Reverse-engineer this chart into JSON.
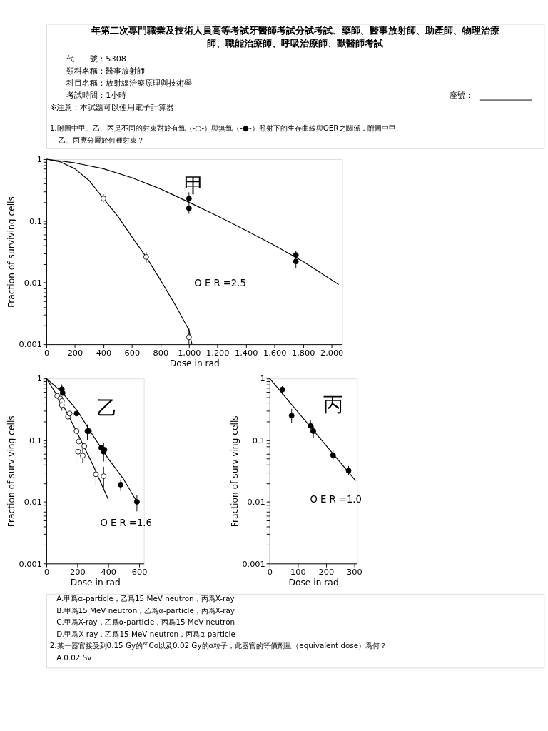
{
  "chart_data": [
    {
      "type": "scatter",
      "title": "甲",
      "xlabel": "Dose in rad",
      "ylabel": "Fraction of surviving cells",
      "log": "y",
      "grid": false,
      "xlim": [
        0,
        2075
      ],
      "ylim": [
        0.001,
        1
      ],
      "xticks": [
        0,
        200,
        400,
        600,
        800,
        {
          "value": 1000,
          "label": "1,000"
        },
        {
          "value": 1200,
          "label": "1,200"
        },
        {
          "value": 1400,
          "label": "1,400"
        },
        {
          "value": 1600,
          "label": "1,600"
        },
        {
          "value": 1800,
          "label": "1,800"
        },
        {
          "value": 2000,
          "label": "2,000"
        }
      ],
      "yticks": [
        0.001,
        {
          "value": 0.002,
          "label": null
        },
        {
          "value": 0.003,
          "label": null
        },
        {
          "value": 0.004,
          "label": null
        },
        {
          "value": 0.005,
          "label": null
        },
        {
          "value": 0.006,
          "label": null
        },
        {
          "value": 0.007,
          "label": null
        },
        {
          "value": 0.008,
          "label": null
        },
        {
          "value": 0.009,
          "label": null
        },
        0.01,
        {
          "value": 0.02,
          "label": null
        },
        {
          "value": 0.03,
          "label": null
        },
        {
          "value": 0.04,
          "label": null
        },
        {
          "value": 0.05,
          "label": null
        },
        {
          "value": 0.06,
          "label": null
        },
        {
          "value": 0.07,
          "label": null
        },
        {
          "value": 0.08,
          "label": null
        },
        {
          "value": 0.09,
          "label": null
        },
        0.1,
        {
          "value": 0.2,
          "label": null
        },
        {
          "value": 0.3,
          "label": null
        },
        {
          "value": 0.4,
          "label": null
        },
        {
          "value": 0.5,
          "label": null
        },
        {
          "value": 0.6,
          "label": null
        },
        {
          "value": 0.7,
          "label": null
        },
        {
          "value": 0.8,
          "label": null
        },
        {
          "value": 0.9,
          "label": null
        },
        1
      ],
      "series": [
        {
          "type": "line",
          "color": "#000000",
          "marker": "none",
          "x": [
            0,
            100,
            200,
            300,
            400,
            500,
            600,
            700,
            800,
            900,
            1000,
            1020
          ],
          "values": [
            1,
            0.9,
            0.7,
            0.45,
            0.23,
            0.12,
            0.055,
            0.026,
            0.011,
            0.0045,
            0.0017,
            0.001
          ]
        },
        {
          "type": "line",
          "color": "#000000",
          "marker": "none",
          "x": [
            0,
            200,
            400,
            600,
            800,
            1000,
            1200,
            1400,
            1600,
            1800,
            2050
          ],
          "values": [
            1,
            0.87,
            0.7,
            0.5,
            0.33,
            0.2,
            0.12,
            0.07,
            0.04,
            0.022,
            0.0093
          ]
        },
        {
          "color": "#ffffff",
          "marker": "circle",
          "x": [
            400,
            700,
            1000
          ],
          "values": [
            0.23,
            0.026,
            0.0013
          ],
          "errors": [
            [
              0.2,
              0.27
            ],
            [
              0.021,
              0.031
            ],
            [
              0.001,
              0.0018
            ]
          ]
        },
        {
          "color": "#000000",
          "marker": "circle",
          "x": [
            1000,
            1000,
            1750,
            1750
          ],
          "values": [
            0.23,
            0.16,
            0.028,
            0.022
          ],
          "errors": [
            [
              0.13,
              0.29
            ],
            null,
            [
              0.017,
              0.033
            ],
            null
          ]
        }
      ],
      "annotations": [
        "O E R =2.5",
        "年第二次專門職業及技術人員高等考試牙醫師考試分試考試、藥師、醫事放射師、助產師、物理治療",
        "師、職能治療師、呼吸治療師、獸醫師考試",
        "代　　號：5308",
        "類科名稱：醫事放射師",
        "科目名稱：放射線治療原理與技術學",
        "考試時間：1小時",
        "座號：",
        "※注意：本試題可以使用電子計算器",
        "1.附圖中甲、乙、丙是不同的射束對於有氧（-○-）與無氧（-●-）照射下的生存曲線與OER之關係，附圖中甲、",
        "乙、丙應分屬於何種射束？"
      ]
    },
    {
      "type": "scatter",
      "title": "乙",
      "xlabel": "Dose in rad",
      "ylabel": "Fraction of surviving cells",
      "log": "y",
      "grid": false,
      "xlim": [
        0,
        630
      ],
      "ylim": [
        0.001,
        1
      ],
      "xticks": [
        0,
        200,
        400,
        600
      ],
      "yticks": [
        0.001,
        {
          "value": 0.002,
          "label": null
        },
        {
          "value": 0.003,
          "label": null
        },
        {
          "value": 0.004,
          "label": null
        },
        {
          "value": 0.005,
          "label": null
        },
        {
          "value": 0.006,
          "label": null
        },
        {
          "value": 0.007,
          "label": null
        },
        {
          "value": 0.008,
          "label": null
        },
        {
          "value": 0.009,
          "label": null
        },
        0.01,
        {
          "value": 0.02,
          "label": null
        },
        {
          "value": 0.03,
          "label": null
        },
        {
          "value": 0.04,
          "label": null
        },
        {
          "value": 0.05,
          "label": null
        },
        {
          "value": 0.06,
          "label": null
        },
        {
          "value": 0.07,
          "label": null
        },
        {
          "value": 0.08,
          "label": null
        },
        {
          "value": 0.09,
          "label": null
        },
        0.1,
        {
          "value": 0.2,
          "label": null
        },
        {
          "value": 0.3,
          "label": null
        },
        {
          "value": 0.4,
          "label": null
        },
        {
          "value": 0.5,
          "label": null
        },
        {
          "value": 0.6,
          "label": null
        },
        {
          "value": 0.7,
          "label": null
        },
        {
          "value": 0.8,
          "label": null
        },
        {
          "value": 0.9,
          "label": null
        },
        1
      ],
      "series": [
        {
          "type": "line",
          "color": "#000000",
          "marker": "none",
          "x": [
            0,
            100,
            200,
            300,
            400,
            500,
            585
          ],
          "values": [
            1,
            0.6,
            0.3,
            0.12,
            0.05,
            0.023,
            0.01
          ]
        },
        {
          "type": "line",
          "color": "#000000",
          "marker": "none",
          "x": [
            0,
            100,
            200,
            300,
            400
          ],
          "values": [
            1,
            0.4,
            0.13,
            0.04,
            0.011
          ]
        },
        {
          "color": "#ffffff",
          "marker": "circle",
          "x": [
            70,
            90,
            100,
            100,
            140,
            150,
            195,
            210,
            205,
            235,
            245,
            320,
            370
          ],
          "values": [
            0.52,
            0.47,
            0.43,
            0.37,
            0.24,
            0.27,
            0.14,
            0.095,
            0.065,
            0.056,
            0.08,
            0.028,
            0.026
          ],
          "errors": [
            null,
            null,
            null,
            [
              0.3,
              0.45
            ],
            null,
            null,
            null,
            null,
            [
              0.042,
              0.1
            ],
            [
              0.042,
              0.075
            ],
            null,
            [
              0.018,
              0.04
            ],
            [
              0.017,
              0.037
            ]
          ]
        },
        {
          "color": "#000000",
          "marker": "circle",
          "x": [
            100,
            105,
            195,
            265,
            275,
            355,
            370,
            375,
            480,
            585
          ],
          "values": [
            0.67,
            0.58,
            0.27,
            0.14,
            0.14,
            0.075,
            0.065,
            0.07,
            0.019,
            0.01
          ],
          "errors": [
            [
              0.55,
              0.8
            ],
            null,
            null,
            [
              0.1,
              0.18
            ],
            null,
            null,
            [
              0.045,
              0.09
            ],
            null,
            [
              0.015,
              0.023
            ],
            [
              0.007,
              0.013
            ]
          ]
        }
      ],
      "annotations": [
        "O E R =1.6"
      ]
    },
    {
      "type": "scatter",
      "title": "丙",
      "xlabel": "Dose in rad",
      "ylabel": "Fraction of surviving cells",
      "log": "y",
      "grid": false,
      "xlim": [
        0,
        310
      ],
      "ylim": [
        0.001,
        1
      ],
      "xticks": [
        0,
        100,
        200,
        300
      ],
      "yticks": [
        0.001,
        {
          "value": 0.002,
          "label": null
        },
        {
          "value": 0.003,
          "label": null
        },
        {
          "value": 0.004,
          "label": null
        },
        {
          "value": 0.005,
          "label": null
        },
        {
          "value": 0.006,
          "label": null
        },
        {
          "value": 0.007,
          "label": null
        },
        {
          "value": 0.008,
          "label": null
        },
        {
          "value": 0.009,
          "label": null
        },
        0.01,
        {
          "value": 0.02,
          "label": null
        },
        {
          "value": 0.03,
          "label": null
        },
        {
          "value": 0.04,
          "label": null
        },
        {
          "value": 0.05,
          "label": null
        },
        {
          "value": 0.06,
          "label": null
        },
        {
          "value": 0.07,
          "label": null
        },
        {
          "value": 0.08,
          "label": null
        },
        {
          "value": 0.09,
          "label": null
        },
        0.1,
        {
          "value": 0.2,
          "label": null
        },
        {
          "value": 0.3,
          "label": null
        },
        {
          "value": 0.4,
          "label": null
        },
        {
          "value": 0.5,
          "label": null
        },
        {
          "value": 0.6,
          "label": null
        },
        {
          "value": 0.7,
          "label": null
        },
        {
          "value": 0.8,
          "label": null
        },
        {
          "value": 0.9,
          "label": null
        },
        1
      ],
      "series": [
        {
          "type": "line",
          "color": "#000000",
          "marker": "none",
          "x": [
            0,
            305
          ],
          "values": [
            1,
            0.022
          ]
        },
        {
          "color": "#000000",
          "marker": "circle",
          "x": [
            45,
            78,
            145,
            155,
            225,
            280
          ],
          "values": [
            0.66,
            0.25,
            0.17,
            0.14,
            0.057,
            0.032
          ],
          "errors": [
            [
              0.55,
              0.75
            ],
            [
              0.19,
              0.32
            ],
            [
              0.13,
              0.21
            ],
            [
              0.11,
              0.17
            ],
            [
              0.048,
              0.068
            ],
            [
              0.027,
              0.038
            ]
          ]
        }
      ],
      "annotations": [
        "O E R =1.0",
        "A.甲爲α-particle，乙爲15 MeV neutron，丙爲X-ray",
        "B.甲爲15 MeV neutron，乙爲α-particle，丙爲X-ray",
        "C.甲爲X-ray，乙爲α-particle，丙爲15 MeV neutron",
        "D.甲爲X-ray，乙爲15 MeV neutron，丙爲α-particle",
        "2.某一器官接受到0.15 Gy的⁶⁰Co以及0.02 Gy的α粒子，此器官的等價劑量（equivalent dose）爲何？",
        "A.0.02 Sv"
      ]
    }
  ]
}
